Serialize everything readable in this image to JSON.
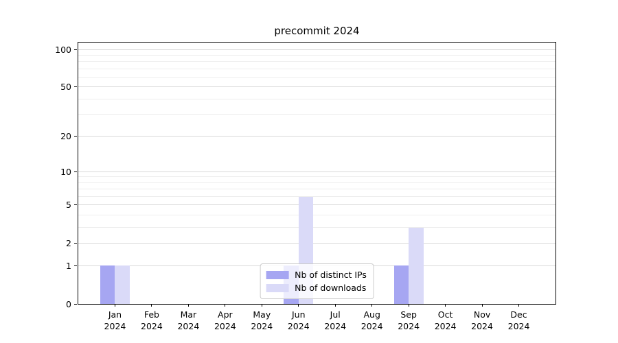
{
  "title": "precommit 2024",
  "colors": {
    "distinct_ips_bar": "#a6a6f2",
    "downloads_bar": "#dadaf8",
    "grid_major": "#d9d9d9",
    "grid_minor": "#ededed",
    "axis": "#000000",
    "legend_border": "#cccccc"
  },
  "chart_data": {
    "type": "bar",
    "title": "precommit 2024",
    "categories": [
      {
        "month": "Jan",
        "year": "2024"
      },
      {
        "month": "Feb",
        "year": "2024"
      },
      {
        "month": "Mar",
        "year": "2024"
      },
      {
        "month": "Apr",
        "year": "2024"
      },
      {
        "month": "May",
        "year": "2024"
      },
      {
        "month": "Jun",
        "year": "2024"
      },
      {
        "month": "Jul",
        "year": "2024"
      },
      {
        "month": "Aug",
        "year": "2024"
      },
      {
        "month": "Sep",
        "year": "2024"
      },
      {
        "month": "Oct",
        "year": "2024"
      },
      {
        "month": "Nov",
        "year": "2024"
      },
      {
        "month": "Dec",
        "year": "2024"
      }
    ],
    "series": [
      {
        "name": "Nb of distinct IPs",
        "key": "distinct-ips",
        "color": "#a6a6f2",
        "values": [
          1,
          0,
          0,
          0,
          0,
          1,
          0,
          0,
          1,
          0,
          0,
          0
        ]
      },
      {
        "name": "Nb of downloads",
        "key": "downloads",
        "color": "#dadaf8",
        "values": [
          1,
          0,
          0,
          0,
          0,
          6,
          0,
          0,
          3,
          0,
          0,
          0
        ]
      }
    ],
    "y_axis": {
      "scale": "log1p",
      "ticks": [
        0,
        1,
        2,
        5,
        10,
        20,
        50,
        100
      ],
      "minor_ticks": [
        3,
        4,
        6,
        7,
        8,
        9,
        30,
        40,
        60,
        70,
        80,
        90
      ],
      "max": 113.4,
      "min": 0
    },
    "x_axis": {
      "slots": 13
    },
    "legend": {
      "position": "lower center"
    },
    "grid": true
  }
}
